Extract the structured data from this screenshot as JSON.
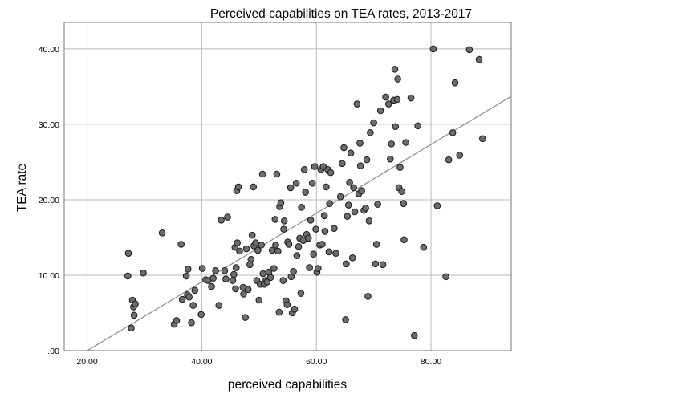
{
  "chart_data": {
    "type": "scatter",
    "title": "Perceived capabilities on TEA rates, 2013-2017",
    "xlabel": "perceived capabilities",
    "ylabel": "TEA rate",
    "xlim": [
      16,
      94
    ],
    "ylim": [
      0,
      43.5
    ],
    "xticks": [
      {
        "value": 20,
        "label": "20.00"
      },
      {
        "value": 40,
        "label": "40.00"
      },
      {
        "value": 60,
        "label": "60.00"
      },
      {
        "value": 80,
        "label": "80.00"
      }
    ],
    "yticks": [
      {
        "value": 0,
        "label": ".00"
      },
      {
        "value": 10,
        "label": "10.00"
      },
      {
        "value": 20,
        "label": "20.00"
      },
      {
        "value": 30,
        "label": "30.00"
      },
      {
        "value": 40,
        "label": "40.00"
      }
    ],
    "grid": true,
    "fit_line": {
      "slope": 0.4556,
      "intercept": -9.12
    },
    "points": [
      [
        27.2,
        12.9
      ],
      [
        27.1,
        9.9
      ],
      [
        27.7,
        3.0
      ],
      [
        27.9,
        6.7
      ],
      [
        28.1,
        5.8
      ],
      [
        28.4,
        6.2
      ],
      [
        28.2,
        4.7
      ],
      [
        29.8,
        10.3
      ],
      [
        33.1,
        15.6
      ],
      [
        35.2,
        3.5
      ],
      [
        35.6,
        4.0
      ],
      [
        36.4,
        14.1
      ],
      [
        36.6,
        6.8
      ],
      [
        37.5,
        7.4
      ],
      [
        37.3,
        9.9
      ],
      [
        37.6,
        10.8
      ],
      [
        37.8,
        7.1
      ],
      [
        38.5,
        6.0
      ],
      [
        38.2,
        3.7
      ],
      [
        38.8,
        8.0
      ],
      [
        39.9,
        4.8
      ],
      [
        40.1,
        10.9
      ],
      [
        40.7,
        9.4
      ],
      [
        41.1,
        9.3
      ],
      [
        41.7,
        8.5
      ],
      [
        42.0,
        9.6
      ],
      [
        42.4,
        10.6
      ],
      [
        43.0,
        6.0
      ],
      [
        43.4,
        17.3
      ],
      [
        44.0,
        10.6
      ],
      [
        44.2,
        9.5
      ],
      [
        44.5,
        17.7
      ],
      [
        45.4,
        9.3
      ],
      [
        45.6,
        10.1
      ],
      [
        45.8,
        13.7
      ],
      [
        45.9,
        8.2
      ],
      [
        46.0,
        11.0
      ],
      [
        46.1,
        21.2
      ],
      [
        46.2,
        14.3
      ],
      [
        46.4,
        21.7
      ],
      [
        46.6,
        13.2
      ],
      [
        47.2,
        8.4
      ],
      [
        47.3,
        7.5
      ],
      [
        47.6,
        4.4
      ],
      [
        47.8,
        13.5
      ],
      [
        48.1,
        8.1
      ],
      [
        48.4,
        11.4
      ],
      [
        48.6,
        12.1
      ],
      [
        48.8,
        15.3
      ],
      [
        49.0,
        21.7
      ],
      [
        49.1,
        13.9
      ],
      [
        49.4,
        14.3
      ],
      [
        49.6,
        9.3
      ],
      [
        49.8,
        13.3
      ],
      [
        50.0,
        6.7
      ],
      [
        50.2,
        8.8
      ],
      [
        50.4,
        14.0
      ],
      [
        50.6,
        23.4
      ],
      [
        50.7,
        10.2
      ],
      [
        50.9,
        8.8
      ],
      [
        51.2,
        9.3
      ],
      [
        51.4,
        9.1
      ],
      [
        51.7,
        10.4
      ],
      [
        52.0,
        9.7
      ],
      [
        52.3,
        13.3
      ],
      [
        52.6,
        10.9
      ],
      [
        52.8,
        17.4
      ],
      [
        52.9,
        14.0
      ],
      [
        53.1,
        23.4
      ],
      [
        53.3,
        13.2
      ],
      [
        53.5,
        5.1
      ],
      [
        53.6,
        19.1
      ],
      [
        53.8,
        19.6
      ],
      [
        54.2,
        9.3
      ],
      [
        54.3,
        16.1
      ],
      [
        54.4,
        17.2
      ],
      [
        54.7,
        6.6
      ],
      [
        54.9,
        6.1
      ],
      [
        55.0,
        14.4
      ],
      [
        55.2,
        14.1
      ],
      [
        55.5,
        21.6
      ],
      [
        55.6,
        9.8
      ],
      [
        55.8,
        5.0
      ],
      [
        56.0,
        10.5
      ],
      [
        56.2,
        5.5
      ],
      [
        56.5,
        22.2
      ],
      [
        56.6,
        12.6
      ],
      [
        56.9,
        13.8
      ],
      [
        57.1,
        14.9
      ],
      [
        57.4,
        19.0
      ],
      [
        57.3,
        7.6
      ],
      [
        57.7,
        14.6
      ],
      [
        57.9,
        24.0
      ],
      [
        58.1,
        21.0
      ],
      [
        58.3,
        15.4
      ],
      [
        58.6,
        14.9
      ],
      [
        58.8,
        11.0
      ],
      [
        59.0,
        17.3
      ],
      [
        59.3,
        22.2
      ],
      [
        59.5,
        12.8
      ],
      [
        59.7,
        24.4
      ],
      [
        59.9,
        16.1
      ],
      [
        60.1,
        10.4
      ],
      [
        60.3,
        10.9
      ],
      [
        60.6,
        14.0
      ],
      [
        60.8,
        24.0
      ],
      [
        61.0,
        14.1
      ],
      [
        61.2,
        24.4
      ],
      [
        61.4,
        17.9
      ],
      [
        61.5,
        15.8
      ],
      [
        61.7,
        21.7
      ],
      [
        62.0,
        24.0
      ],
      [
        62.2,
        13.1
      ],
      [
        62.3,
        19.5
      ],
      [
        62.5,
        23.6
      ],
      [
        63.1,
        16.2
      ],
      [
        63.4,
        12.9
      ],
      [
        64.2,
        20.4
      ],
      [
        64.5,
        24.8
      ],
      [
        64.8,
        26.9
      ],
      [
        65.1,
        4.1
      ],
      [
        65.2,
        11.5
      ],
      [
        65.4,
        17.8
      ],
      [
        65.6,
        19.3
      ],
      [
        65.8,
        22.3
      ],
      [
        66.0,
        26.2
      ],
      [
        66.3,
        12.3
      ],
      [
        66.5,
        21.6
      ],
      [
        66.7,
        18.4
      ],
      [
        67.1,
        32.7
      ],
      [
        67.4,
        20.8
      ],
      [
        67.6,
        27.5
      ],
      [
        67.7,
        24.5
      ],
      [
        67.9,
        21.2
      ],
      [
        68.3,
        18.6
      ],
      [
        68.6,
        18.9
      ],
      [
        68.8,
        25.3
      ],
      [
        69.0,
        7.2
      ],
      [
        69.2,
        17.2
      ],
      [
        69.4,
        28.9
      ],
      [
        70.0,
        30.2
      ],
      [
        70.3,
        11.5
      ],
      [
        70.5,
        14.1
      ],
      [
        70.7,
        19.4
      ],
      [
        71.2,
        31.8
      ],
      [
        71.6,
        11.4
      ],
      [
        72.1,
        33.6
      ],
      [
        72.6,
        32.7
      ],
      [
        72.9,
        25.4
      ],
      [
        73.1,
        27.4
      ],
      [
        73.5,
        33.2
      ],
      [
        73.7,
        37.3
      ],
      [
        73.8,
        29.7
      ],
      [
        74.1,
        33.3
      ],
      [
        74.2,
        36.0
      ],
      [
        74.4,
        21.6
      ],
      [
        74.6,
        24.3
      ],
      [
        74.9,
        21.1
      ],
      [
        75.2,
        19.5
      ],
      [
        75.3,
        14.7
      ],
      [
        75.6,
        27.6
      ],
      [
        76.5,
        33.5
      ],
      [
        77.1,
        2.0
      ],
      [
        77.7,
        29.8
      ],
      [
        78.7,
        13.7
      ],
      [
        80.4,
        40.0
      ],
      [
        81.1,
        19.2
      ],
      [
        82.6,
        9.8
      ],
      [
        83.1,
        25.3
      ],
      [
        83.8,
        28.9
      ],
      [
        84.2,
        35.5
      ],
      [
        85.0,
        25.9
      ],
      [
        86.7,
        39.9
      ],
      [
        88.4,
        38.6
      ],
      [
        89.0,
        28.1
      ]
    ]
  }
}
